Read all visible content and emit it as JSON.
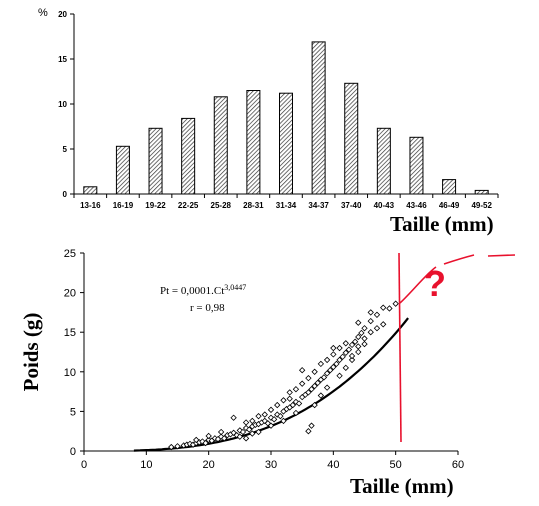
{
  "chart_data": [
    {
      "type": "bar",
      "ylabel": "%",
      "xlabel": "Taille (mm)",
      "ylim": [
        0,
        20
      ],
      "yticks": [
        0,
        5,
        10,
        15,
        20
      ],
      "categories": [
        "13-16",
        "16-19",
        "19-22",
        "22-25",
        "25-28",
        "28-31",
        "31-34",
        "34-37",
        "37-40",
        "40-43",
        "43-46",
        "46-49",
        "49-52"
      ],
      "values": [
        0.8,
        5.3,
        7.3,
        8.4,
        10.8,
        11.5,
        11.2,
        16.9,
        12.3,
        7.3,
        6.3,
        1.6,
        0.4
      ],
      "bar_fill": "hatched"
    },
    {
      "type": "scatter",
      "xlabel": "Taille (mm)",
      "ylabel": "Poids (g)",
      "xlim": [
        0,
        60
      ],
      "ylim": [
        0,
        25
      ],
      "xticks": [
        0,
        10,
        20,
        30,
        40,
        50,
        60
      ],
      "yticks": [
        0,
        5,
        10,
        15,
        20,
        25
      ],
      "annotation": {
        "equation_main": "Pt = 0,0001.Ct",
        "equation_exp": "3,0447",
        "r": "r = 0,98"
      },
      "fit": {
        "a": 0.0001,
        "b": 3.0447,
        "x_range": [
          8,
          52
        ]
      },
      "points": [
        [
          14,
          0.5
        ],
        [
          15,
          0.6
        ],
        [
          16,
          0.7
        ],
        [
          16.5,
          0.8
        ],
        [
          17,
          0.9
        ],
        [
          17.5,
          0.8
        ],
        [
          18,
          1.0
        ],
        [
          18.5,
          1.1
        ],
        [
          19,
          1.2
        ],
        [
          19.5,
          1.0
        ],
        [
          20,
          1.4
        ],
        [
          20.5,
          1.3
        ],
        [
          21,
          1.6
        ],
        [
          21.5,
          1.5
        ],
        [
          22,
          1.8
        ],
        [
          22.5,
          1.6
        ],
        [
          23,
          2.0
        ],
        [
          23.5,
          2.1
        ],
        [
          24,
          2.3
        ],
        [
          24.5,
          2.0
        ],
        [
          25,
          2.6
        ],
        [
          25.5,
          2.4
        ],
        [
          26,
          2.9
        ],
        [
          26.5,
          2.7
        ],
        [
          27,
          3.1
        ],
        [
          27.5,
          3.3
        ],
        [
          28,
          3.4
        ],
        [
          28.5,
          3.6
        ],
        [
          29,
          3.8
        ],
        [
          29.5,
          3.5
        ],
        [
          30,
          4.2
        ],
        [
          30.5,
          4.0
        ],
        [
          31,
          4.6
        ],
        [
          31.5,
          4.4
        ],
        [
          32,
          5.0
        ],
        [
          32.5,
          5.3
        ],
        [
          33,
          5.5
        ],
        [
          33.5,
          5.8
        ],
        [
          34,
          6.2
        ],
        [
          34.5,
          6.0
        ],
        [
          35,
          6.8
        ],
        [
          35.5,
          7.1
        ],
        [
          36,
          7.4
        ],
        [
          36.5,
          7.8
        ],
        [
          37,
          8.2
        ],
        [
          37.5,
          8.6
        ],
        [
          38,
          9.0
        ],
        [
          38.5,
          9.3
        ],
        [
          39,
          9.8
        ],
        [
          39.5,
          10.2
        ],
        [
          40,
          10.6
        ],
        [
          40.5,
          11.0
        ],
        [
          41,
          11.5
        ],
        [
          41.5,
          11.9
        ],
        [
          42,
          12.4
        ],
        [
          42.5,
          12.8
        ],
        [
          43,
          13.4
        ],
        [
          43.5,
          13.8
        ],
        [
          44,
          14.4
        ],
        [
          44.5,
          14.9
        ],
        [
          45,
          15.5
        ],
        [
          46,
          16.4
        ],
        [
          47,
          17.2
        ],
        [
          48,
          18.1
        ],
        [
          49,
          18.0
        ],
        [
          50,
          18.6
        ],
        [
          24,
          4.2
        ],
        [
          25,
          1.8
        ],
        [
          26,
          1.6
        ],
        [
          27,
          2.2
        ],
        [
          28,
          2.4
        ],
        [
          30,
          3.2
        ],
        [
          32,
          3.8
        ],
        [
          33,
          7.4
        ],
        [
          34,
          4.8
        ],
        [
          35,
          10.2
        ],
        [
          36,
          2.5
        ],
        [
          36.5,
          3.2
        ],
        [
          37,
          5.8
        ],
        [
          38,
          7.0
        ],
        [
          39,
          8.0
        ],
        [
          40,
          13.0
        ],
        [
          41,
          9.5
        ],
        [
          42,
          10.5
        ],
        [
          43,
          11.5
        ],
        [
          44,
          12.5
        ],
        [
          45,
          13.5
        ],
        [
          46,
          15.0
        ],
        [
          47,
          15.5
        ],
        [
          48,
          16.0
        ],
        [
          42,
          13.6
        ],
        [
          40,
          12.2
        ],
        [
          38,
          11.0
        ],
        [
          36,
          9.2
        ],
        [
          34,
          7.8
        ],
        [
          32,
          6.4
        ],
        [
          30,
          5.2
        ],
        [
          28,
          4.4
        ],
        [
          26,
          3.6
        ],
        [
          22,
          2.4
        ],
        [
          20,
          1.9
        ],
        [
          18,
          1.4
        ],
        [
          31,
          5.8
        ],
        [
          29,
          4.6
        ],
        [
          27,
          3.8
        ],
        [
          44,
          16.2
        ],
        [
          46,
          17.5
        ],
        [
          41,
          13.0
        ],
        [
          39,
          11.5
        ],
        [
          37,
          10.0
        ],
        [
          35,
          8.5
        ],
        [
          33,
          6.6
        ],
        [
          44,
          13.2
        ],
        [
          43,
          12.0
        ],
        [
          45,
          14.2
        ]
      ]
    }
  ],
  "overlay": {
    "question_mark": "?",
    "color": "#e8112d"
  }
}
